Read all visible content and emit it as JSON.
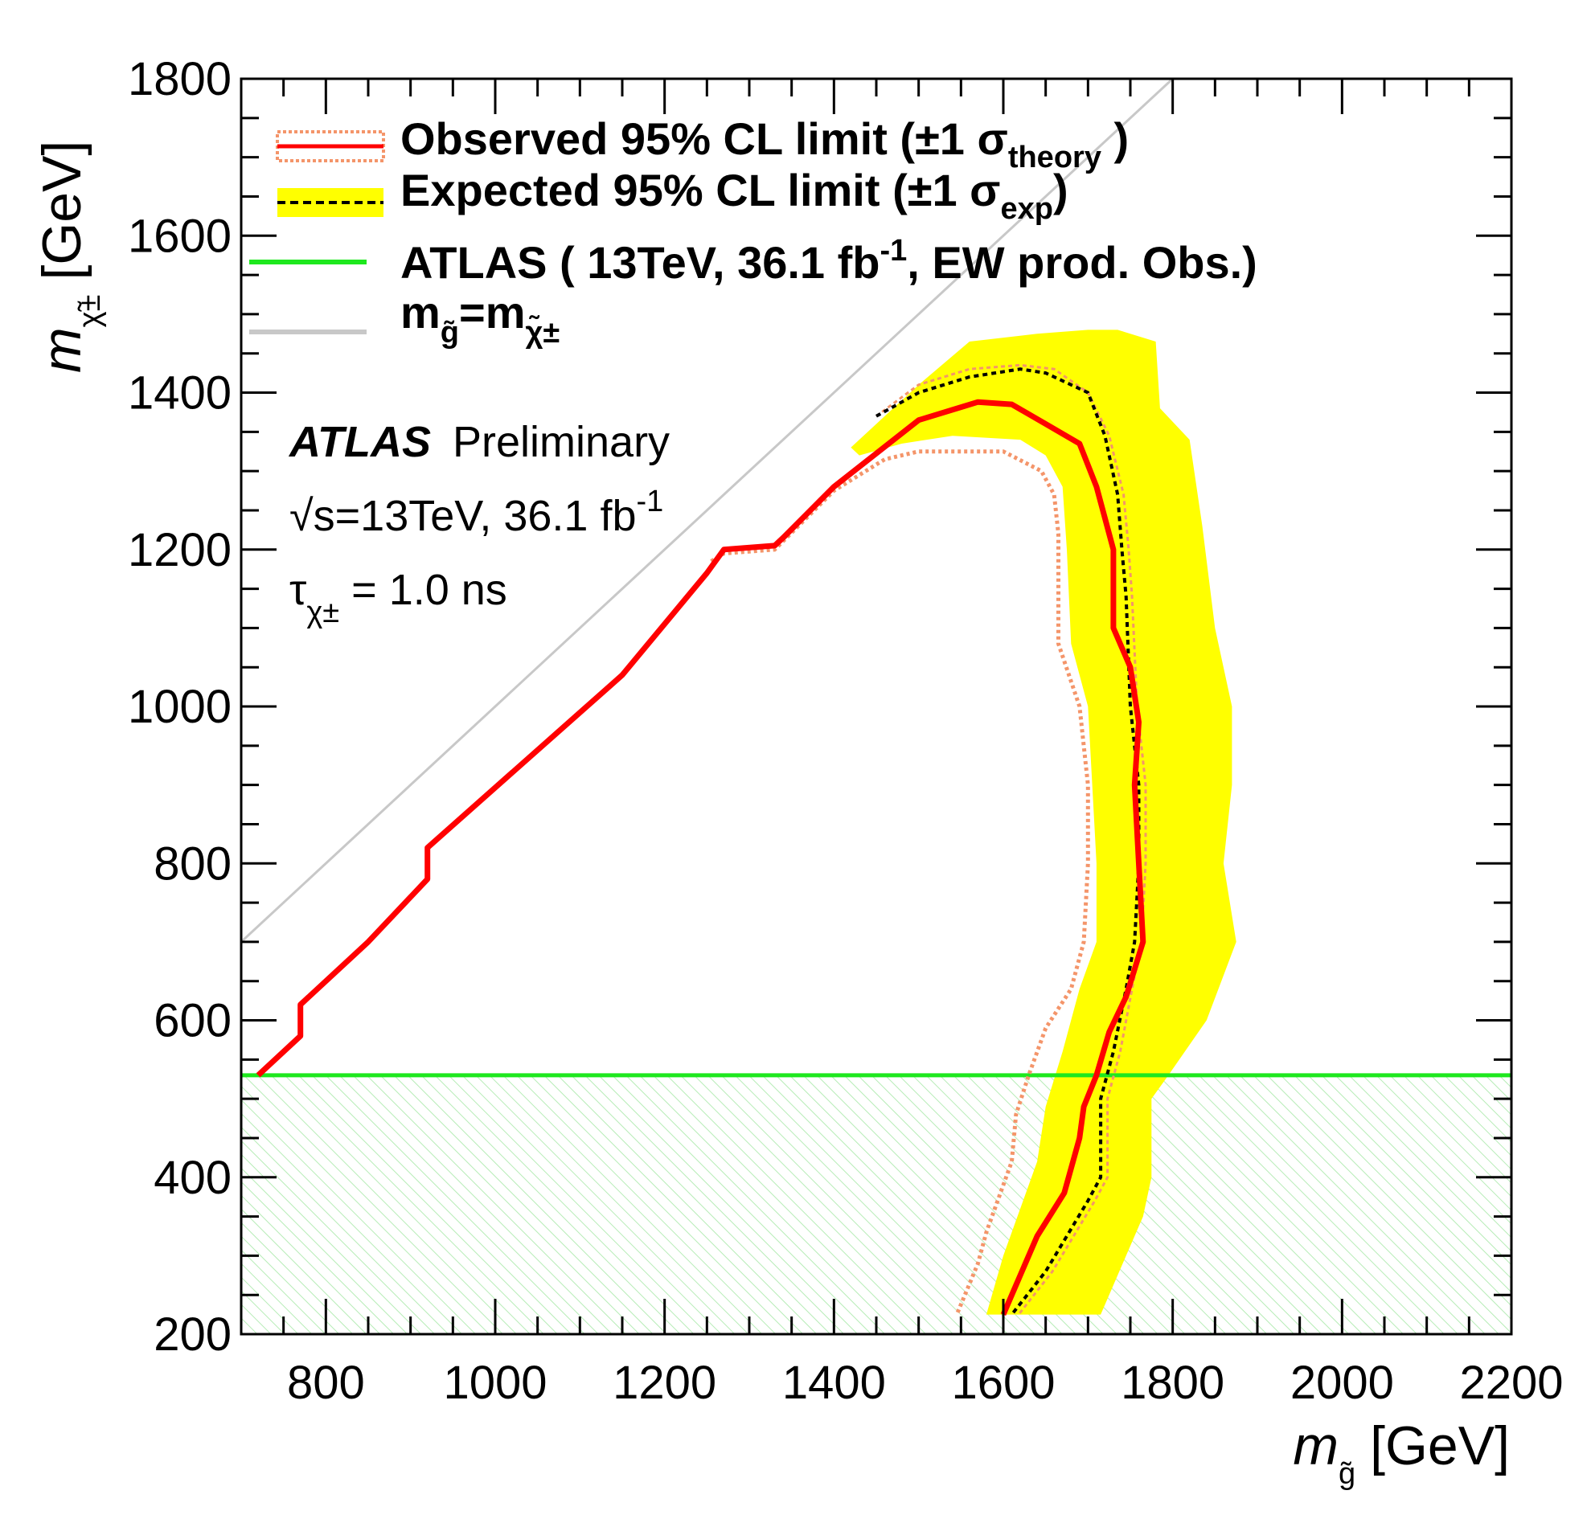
{
  "colors": {
    "observed": "#ff0000",
    "observed_theory": "#f4956a",
    "expected": "#000000",
    "expected_band": "#ffff00",
    "ew_limit": "#1ee81e",
    "ew_hatch": "#b6ecb6",
    "diagonal": "#c8c8c8"
  },
  "chart_data": {
    "type": "line",
    "xlabel": "m",
    "xlabel_sub": "g̃",
    "xlabel_unit": "[GeV]",
    "ylabel": "m",
    "ylabel_sub": "χ̃±",
    "ylabel_unit": "[GeV]",
    "xlim": [
      700,
      2200
    ],
    "ylim": [
      200,
      1800
    ],
    "xticks": [
      800,
      1000,
      1200,
      1400,
      1600,
      1800,
      2000,
      2200
    ],
    "yticks": [
      200,
      400,
      600,
      800,
      1000,
      1200,
      1400,
      1600,
      1800
    ],
    "grid": false,
    "legend_position": "top-left",
    "legend": [
      {
        "id": "obs",
        "main": "Observed 95% CL limit (±1 σ",
        "sub": "theory",
        "tail": " )"
      },
      {
        "id": "exp",
        "main": "Expected 95% CL limit (±1 σ",
        "sub": "exp",
        "tail": ")"
      },
      {
        "id": "ew",
        "main": "ATLAS ( 13TeV, 36.1 fb",
        "sup": "-1",
        "tail": ", EW prod. Obs.)"
      },
      {
        "id": "diag",
        "main": "m",
        "sub": "g̃",
        "mid": "=m",
        "sub2": "χ̃±"
      }
    ],
    "annotations": {
      "atlas": "ATLAS",
      "preliminary": "Preliminary",
      "energy_pre": "√s=13TeV, 36.1 fb",
      "energy_sup": "-1",
      "tau_main": "τ",
      "tau_sub": "χ±",
      "tau_value": " = 1.0 ns"
    },
    "ew_limit_y": 530,
    "series": [
      {
        "name": "Observed",
        "style": "solid",
        "points": [
          [
            720,
            530
          ],
          [
            770,
            580
          ],
          [
            770,
            620
          ],
          [
            850,
            700
          ],
          [
            920,
            780
          ],
          [
            920,
            820
          ],
          [
            1150,
            1040
          ],
          [
            1250,
            1170
          ],
          [
            1270,
            1200
          ],
          [
            1330,
            1205
          ],
          [
            1340,
            1215
          ],
          [
            1400,
            1280
          ],
          [
            1500,
            1365
          ],
          [
            1570,
            1388
          ],
          [
            1610,
            1385
          ],
          [
            1650,
            1360
          ],
          [
            1690,
            1335
          ],
          [
            1710,
            1280
          ],
          [
            1730,
            1200
          ],
          [
            1730,
            1100
          ],
          [
            1750,
            1050
          ],
          [
            1760,
            980
          ],
          [
            1755,
            900
          ],
          [
            1760,
            800
          ],
          [
            1765,
            700
          ],
          [
            1745,
            630
          ],
          [
            1725,
            585
          ],
          [
            1710,
            530
          ],
          [
            1695,
            490
          ],
          [
            1690,
            450
          ],
          [
            1672,
            380
          ],
          [
            1640,
            325
          ],
          [
            1600,
            225
          ]
        ]
      },
      {
        "name": "Observed -1σ theory",
        "style": "dotted",
        "points": [
          [
            1255,
            1185
          ],
          [
            1270,
            1195
          ],
          [
            1330,
            1200
          ],
          [
            1400,
            1275
          ],
          [
            1460,
            1315
          ],
          [
            1500,
            1325
          ],
          [
            1600,
            1325
          ],
          [
            1645,
            1300
          ],
          [
            1660,
            1270
          ],
          [
            1665,
            1220
          ],
          [
            1665,
            1080
          ],
          [
            1690,
            1000
          ],
          [
            1700,
            900
          ],
          [
            1700,
            800
          ],
          [
            1695,
            700
          ],
          [
            1680,
            640
          ],
          [
            1650,
            590
          ],
          [
            1630,
            530
          ],
          [
            1615,
            480
          ],
          [
            1610,
            420
          ],
          [
            1580,
            330
          ],
          [
            1570,
            290
          ],
          [
            1545,
            225
          ]
        ]
      },
      {
        "name": "Expected",
        "style": "dashed",
        "points": [
          [
            1450,
            1370
          ],
          [
            1500,
            1400
          ],
          [
            1560,
            1420
          ],
          [
            1620,
            1430
          ],
          [
            1650,
            1425
          ],
          [
            1700,
            1400
          ],
          [
            1720,
            1345
          ],
          [
            1735,
            1270
          ],
          [
            1740,
            1200
          ],
          [
            1745,
            1140
          ],
          [
            1750,
            1000
          ],
          [
            1760,
            900
          ],
          [
            1760,
            800
          ],
          [
            1755,
            700
          ],
          [
            1745,
            640
          ],
          [
            1730,
            560
          ],
          [
            1715,
            500
          ],
          [
            1715,
            400
          ],
          [
            1700,
            370
          ],
          [
            1650,
            280
          ],
          [
            1610,
            225
          ]
        ]
      },
      {
        "name": "Expected +1σ exp",
        "style": "thin",
        "points": [
          [
            1450,
            1370
          ],
          [
            1500,
            1410
          ],
          [
            1560,
            1430
          ],
          [
            1620,
            1435
          ],
          [
            1660,
            1430
          ],
          [
            1700,
            1400
          ],
          [
            1725,
            1345
          ],
          [
            1742,
            1270
          ],
          [
            1748,
            1200
          ],
          [
            1752,
            1140
          ],
          [
            1758,
            1000
          ],
          [
            1768,
            900
          ],
          [
            1768,
            800
          ],
          [
            1763,
            700
          ],
          [
            1752,
            640
          ],
          [
            1738,
            560
          ],
          [
            1723,
            500
          ],
          [
            1723,
            400
          ],
          [
            1708,
            370
          ],
          [
            1658,
            280
          ],
          [
            1618,
            225
          ]
        ]
      }
    ],
    "band": {
      "name": "Expected ±1σ exp band",
      "points": [
        [
          1420,
          1330
        ],
        [
          1500,
          1410
        ],
        [
          1560,
          1465
        ],
        [
          1640,
          1475
        ],
        [
          1700,
          1480
        ],
        [
          1735,
          1480
        ],
        [
          1780,
          1465
        ],
        [
          1785,
          1380
        ],
        [
          1820,
          1340
        ],
        [
          1835,
          1230
        ],
        [
          1850,
          1100
        ],
        [
          1870,
          1000
        ],
        [
          1870,
          900
        ],
        [
          1860,
          800
        ],
        [
          1875,
          700
        ],
        [
          1840,
          600
        ],
        [
          1795,
          530
        ],
        [
          1775,
          500
        ],
        [
          1775,
          400
        ],
        [
          1765,
          350
        ],
        [
          1745,
          300
        ],
        [
          1715,
          225
        ],
        [
          1580,
          225
        ],
        [
          1600,
          300
        ],
        [
          1620,
          360
        ],
        [
          1640,
          420
        ],
        [
          1650,
          490
        ],
        [
          1670,
          560
        ],
        [
          1690,
          640
        ],
        [
          1710,
          700
        ],
        [
          1710,
          800
        ],
        [
          1705,
          900
        ],
        [
          1700,
          1000
        ],
        [
          1680,
          1080
        ],
        [
          1675,
          1200
        ],
        [
          1670,
          1280
        ],
        [
          1650,
          1320
        ],
        [
          1620,
          1340
        ],
        [
          1540,
          1345
        ],
        [
          1480,
          1335
        ],
        [
          1430,
          1320
        ]
      ]
    },
    "diagonal": {
      "name": "m_g = m_chi",
      "points": [
        [
          700,
          700
        ],
        [
          1800,
          1800
        ]
      ]
    }
  }
}
